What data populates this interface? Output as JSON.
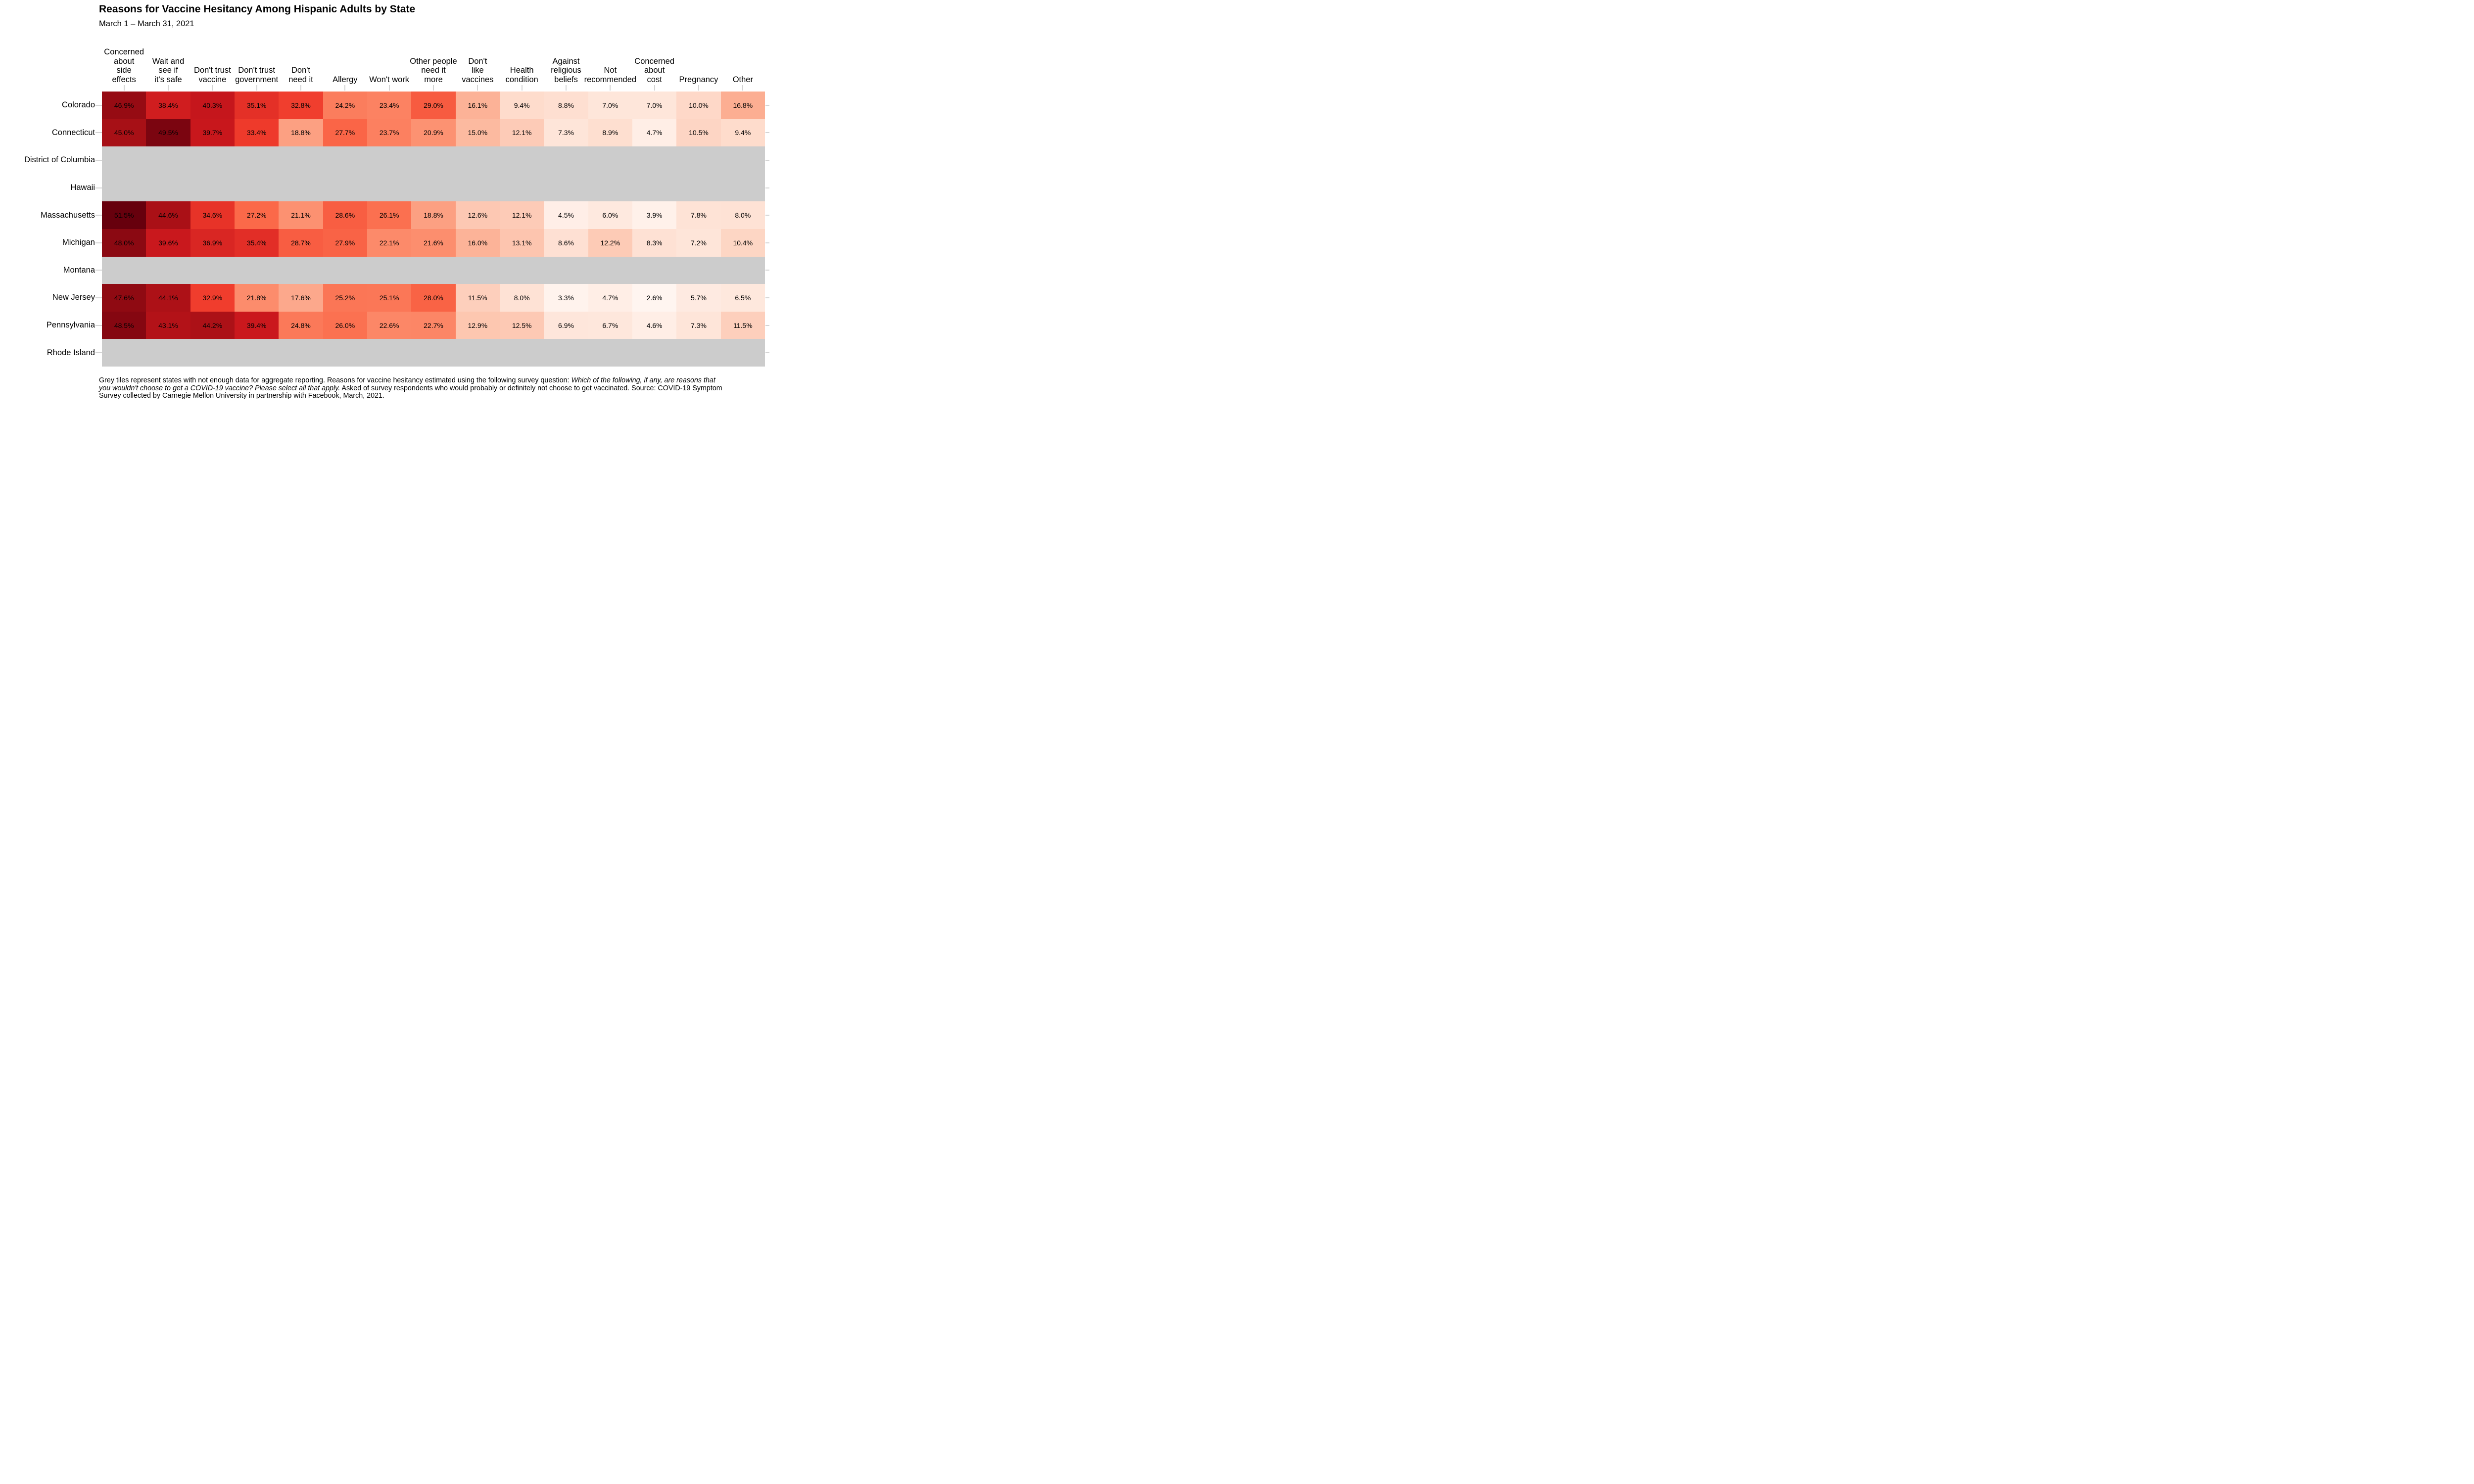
{
  "chart_data": {
    "type": "heatmap",
    "title": "Reasons for Vaccine Hesitancy Among Hispanic Adults by State",
    "subtitle": "March 1 – March 31, 2021",
    "value_suffix": "%",
    "columns": [
      "Concerned\nabout\nside\neffects",
      "Wait and\nsee if\nit's safe",
      "Don't trust\nvaccine",
      "Don't trust\ngovernment",
      "Don't\nneed it",
      "Allergy",
      "Won't work",
      "Other people\nneed it\nmore",
      "Don't\nlike\nvaccines",
      "Health\ncondition",
      "Against\nreligious\nbeliefs",
      "Not\nrecommended",
      "Concerned\nabout\ncost",
      "Pregnancy",
      "Other"
    ],
    "rows": [
      {
        "state": "Colorado",
        "values": [
          46.9,
          38.4,
          40.3,
          35.1,
          32.8,
          24.2,
          23.4,
          29.0,
          16.1,
          9.4,
          8.8,
          7.0,
          7.0,
          10.0,
          16.8
        ]
      },
      {
        "state": "Connecticut",
        "values": [
          45.0,
          49.5,
          39.7,
          33.4,
          18.8,
          27.7,
          23.7,
          20.9,
          15.0,
          12.1,
          7.3,
          8.9,
          4.7,
          10.5,
          9.4
        ]
      },
      {
        "state": "District of Columbia",
        "values": null
      },
      {
        "state": "Hawaii",
        "values": null
      },
      {
        "state": "Massachusetts",
        "values": [
          51.5,
          44.6,
          34.6,
          27.2,
          21.1,
          28.6,
          26.1,
          18.8,
          12.6,
          12.1,
          4.5,
          6.0,
          3.9,
          7.8,
          8.0
        ]
      },
      {
        "state": "Michigan",
        "values": [
          48.0,
          39.6,
          36.9,
          35.4,
          28.7,
          27.9,
          22.1,
          21.6,
          16.0,
          13.1,
          8.6,
          12.2,
          8.3,
          7.2,
          10.4
        ]
      },
      {
        "state": "Montana",
        "values": null
      },
      {
        "state": "New Jersey",
        "values": [
          47.6,
          44.1,
          32.9,
          21.8,
          17.6,
          25.2,
          25.1,
          28.0,
          11.5,
          8.0,
          3.3,
          4.7,
          2.6,
          5.7,
          6.5
        ]
      },
      {
        "state": "Pennsylvania",
        "values": [
          48.5,
          43.1,
          44.2,
          39.4,
          24.8,
          26.0,
          22.6,
          22.7,
          12.9,
          12.5,
          6.9,
          6.7,
          4.6,
          7.3,
          11.5
        ]
      },
      {
        "state": "Rhode Island",
        "values": null
      }
    ],
    "colors": {
      "palette": [
        "#fff5f0",
        "#fee0d2",
        "#fcbba1",
        "#fc9272",
        "#fb6a4a",
        "#ef3b2c",
        "#cb181d",
        "#a50f15",
        "#67000d"
      ],
      "color_domain": [
        2.6,
        51.5
      ],
      "no_data": "#cccccc",
      "tick": "#d4d4d4",
      "cell_text": "#000000"
    },
    "legend": "none",
    "grid": "off"
  },
  "footnote": {
    "lead": "Grey tiles represent states with not enough data for aggregate reporting. Reasons for vaccine hesitancy estimated using the following survey question: ",
    "question_italic": "Which of the following, if any, are reasons that you wouldn't choose to get a COVID-19 vaccine? Please select all that apply.",
    "trail": " Asked of survey respondents who would probably or definitely not choose to get vaccinated. Source: COVID-19 Symptom Survey collected by Carnegie Mellon University in partnership with Facebook, March, 2021."
  }
}
